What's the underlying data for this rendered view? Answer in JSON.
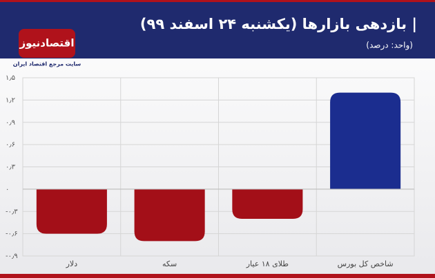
{
  "chart_data": {
    "type": "bar",
    "title": "| بازدهی بازارها (یکشنبه ۲۴ اسفند ۹۹)",
    "subtitle": "(واحد: درصد)",
    "logo": "اقتصادنیوز",
    "logo_tagline": "سایت مرجع اقتصاد ایران",
    "categories": [
      "دلار",
      "سکه",
      "طلای ۱۸ عیار",
      "شاخص کل بورس"
    ],
    "values": [
      -0.6,
      -0.7,
      -0.4,
      1.3
    ],
    "colors": [
      "#a30f18",
      "#a30f18",
      "#a30f18",
      "#1b2d8f"
    ],
    "ylim": [
      -0.9,
      1.5
    ],
    "yticks": [
      {
        "value": -0.9,
        "label": "-۰٫۹"
      },
      {
        "value": -0.6,
        "label": "-۰٫۶"
      },
      {
        "value": -0.3,
        "label": "-۰٫۳"
      },
      {
        "value": 0,
        "label": "۰"
      },
      {
        "value": 0.3,
        "label": "۰٫۳"
      },
      {
        "value": 0.6,
        "label": "۰٫۶"
      },
      {
        "value": 0.9,
        "label": "۰٫۹"
      },
      {
        "value": 1.2,
        "label": "۱٫۲"
      },
      {
        "value": 1.5,
        "label": "۱٫۵"
      }
    ],
    "grid": true
  }
}
